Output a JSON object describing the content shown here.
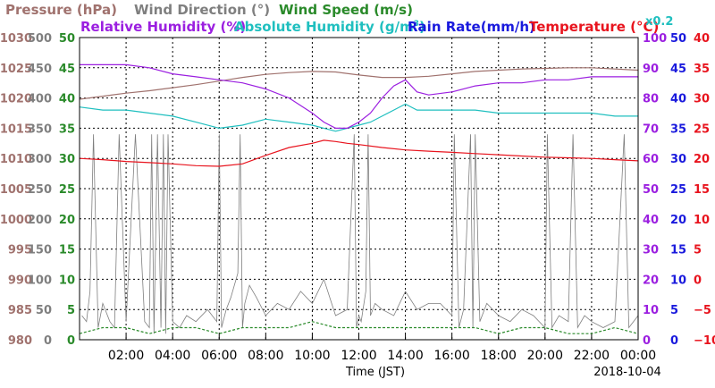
{
  "chart_data": {
    "type": "line",
    "date": "2018-10-04",
    "xlabel": "Time (JST)",
    "x_ticks": [
      "02:00",
      "04:00",
      "06:00",
      "08:00",
      "10:00",
      "12:00",
      "14:00",
      "16:00",
      "18:00",
      "20:00",
      "22:00",
      "00:00"
    ],
    "xlim": [
      0,
      24
    ],
    "grid": true,
    "titles": {
      "pressure": "Pressure (hPa)",
      "wind_direction": "Wind Direction (°)",
      "wind_speed": "Wind Speed (m/s)",
      "relative_humidity": "Relative Humidity (%)",
      "absolute_humidity": "Absolute Humidity (g/m",
      "absolute_humidity_sup": "3",
      "absolute_humidity_close": ")",
      "rain_rate": "Rain Rate(mm/h)",
      "temperature": "Temperature (°C)",
      "absolute_humidity_scale": "x0.2"
    },
    "axes": {
      "pressure": {
        "range": [
          980,
          1030
        ],
        "ticks": [
          "1030",
          "1025",
          "1020",
          "1015",
          "1010",
          "1005",
          "1000",
          "995",
          "990",
          "985",
          "980"
        ],
        "color": "#a0726e"
      },
      "wind_direction": {
        "range": [
          0,
          500
        ],
        "ticks": [
          "500",
          "450",
          "400",
          "350",
          "300",
          "250",
          "200",
          "150",
          "100",
          "50",
          "0"
        ],
        "color": "#7f7f7f"
      },
      "wind_speed": {
        "range": [
          0,
          50
        ],
        "ticks": [
          "50",
          "45",
          "40",
          "35",
          "30",
          "25",
          "20",
          "15",
          "10",
          "5",
          "0"
        ],
        "color": "#2a8a2a"
      },
      "relative_humidity": {
        "range": [
          0,
          100
        ],
        "ticks": [
          "100",
          "90",
          "80",
          "70",
          "60",
          "50",
          "40",
          "30",
          "20",
          "10",
          "0"
        ],
        "color": "#9b1fe0"
      },
      "rain_rate": {
        "range": [
          0,
          50
        ],
        "ticks": [
          "50",
          "45",
          "40",
          "35",
          "30",
          "25",
          "20",
          "15",
          "10",
          "5",
          "0"
        ],
        "color": "#1a1add"
      },
      "temperature": {
        "range": [
          -10,
          40
        ],
        "ticks": [
          "40",
          "35",
          "30",
          "25",
          "20",
          "15",
          "10",
          "5",
          "0",
          "−5",
          "−10"
        ],
        "color": "#e8141e"
      }
    },
    "series": [
      {
        "name": "Pressure (hPa)",
        "color": "#a0726e",
        "x": [
          0,
          1,
          2,
          3,
          4,
          5,
          6,
          7,
          8,
          9,
          10,
          11,
          12,
          13,
          14,
          15,
          16,
          17,
          18,
          19,
          20,
          21,
          22,
          23,
          24
        ],
        "y": [
          1019.8,
          1020.3,
          1020.8,
          1021.2,
          1021.7,
          1022.2,
          1022.8,
          1023.4,
          1023.9,
          1024.2,
          1024.4,
          1024.3,
          1023.8,
          1023.4,
          1023.4,
          1023.6,
          1024.0,
          1024.4,
          1024.6,
          1024.8,
          1024.9,
          1025.0,
          1025.0,
          1024.8,
          1024.6
        ]
      },
      {
        "name": "Relative Humidity (%)",
        "color": "#9b1fe0",
        "x": [
          0,
          1,
          2,
          3,
          4,
          5,
          6,
          7,
          8,
          9,
          10,
          10.5,
          11,
          11.5,
          12,
          12.5,
          13,
          13.5,
          14,
          14.5,
          15,
          16,
          17,
          18,
          19,
          20,
          21,
          22,
          23,
          24
        ],
        "y": [
          91,
          91,
          91,
          90,
          88,
          87,
          86,
          85,
          83,
          80,
          75,
          72,
          70,
          70,
          72,
          75,
          80,
          84,
          86,
          82,
          81,
          82,
          84,
          85,
          85,
          86,
          86,
          87,
          87,
          87
        ]
      },
      {
        "name": "Absolute Humidity (g/m3) x0.2",
        "color": "#1fbfbf",
        "x": [
          0,
          1,
          2,
          3,
          4,
          5,
          6,
          7,
          8,
          9,
          10,
          10.5,
          11,
          11.5,
          12,
          12.5,
          13,
          13.5,
          14,
          14.5,
          15,
          16,
          17,
          18,
          19,
          20,
          21,
          22,
          23,
          24
        ],
        "y": [
          77,
          76,
          76,
          75,
          74,
          72,
          70,
          71,
          73,
          72,
          71,
          70,
          69,
          70,
          71,
          72,
          74,
          76,
          78,
          76,
          76,
          76,
          76,
          75,
          75,
          75,
          75,
          75,
          74,
          74
        ]
      },
      {
        "name": "Temperature (°C)",
        "color": "#e8141e",
        "x": [
          0,
          1,
          2,
          3,
          4,
          5,
          6,
          7,
          8,
          9,
          10,
          10.5,
          11,
          11.5,
          12,
          13,
          14,
          15,
          16,
          17,
          18,
          19,
          20,
          21,
          22,
          23,
          24
        ],
        "y": [
          20.0,
          19.8,
          19.5,
          19.3,
          19.1,
          18.8,
          18.7,
          19.1,
          20.5,
          21.8,
          22.5,
          23.0,
          22.8,
          22.5,
          22.3,
          21.8,
          21.4,
          21.2,
          21.0,
          20.8,
          20.6,
          20.4,
          20.2,
          20.1,
          20.0,
          19.8,
          19.6
        ]
      },
      {
        "name": "Wind Direction (°)",
        "color": "#7f7f7f",
        "x": [
          0.1,
          0.3,
          0.45,
          0.6,
          0.8,
          1.0,
          1.3,
          1.5,
          1.7,
          2.0,
          2.4,
          2.8,
          3.0,
          3.1,
          3.2,
          3.35,
          3.5,
          3.6,
          3.7,
          3.8,
          4.0,
          4.3,
          4.6,
          5.0,
          5.5,
          5.9,
          6.0,
          6.1,
          6.3,
          6.5,
          6.8,
          6.9,
          7.0,
          7.1,
          7.3,
          7.6,
          8.0,
          8.5,
          9.0,
          9.5,
          10.0,
          10.5,
          11.0,
          11.5,
          11.8,
          11.9,
          12.0,
          12.1,
          12.3,
          12.4,
          12.5,
          12.7,
          13.0,
          13.5,
          14.0,
          14.5,
          15.0,
          15.5,
          16.0,
          16.1,
          16.3,
          16.5,
          16.8,
          16.9,
          17.0,
          17.2,
          17.5,
          18.0,
          18.5,
          19.0,
          19.5,
          20.0,
          20.1,
          20.3,
          20.6,
          21.0,
          21.2,
          21.4,
          21.7,
          22.0,
          22.5,
          23.0,
          23.4,
          23.6,
          23.8,
          24.0
        ],
        "y": [
          40,
          30,
          80,
          340,
          20,
          60,
          30,
          20,
          340,
          30,
          340,
          30,
          20,
          340,
          10,
          340,
          20,
          340,
          10,
          340,
          30,
          20,
          40,
          30,
          50,
          30,
          340,
          20,
          50,
          70,
          110,
          340,
          20,
          60,
          90,
          70,
          40,
          60,
          50,
          80,
          60,
          100,
          40,
          50,
          340,
          20,
          40,
          30,
          80,
          340,
          40,
          60,
          50,
          40,
          80,
          50,
          60,
          60,
          40,
          340,
          20,
          50,
          340,
          20,
          340,
          30,
          60,
          40,
          30,
          50,
          40,
          20,
          340,
          20,
          40,
          30,
          340,
          20,
          40,
          30,
          20,
          30,
          340,
          20,
          30,
          40
        ]
      },
      {
        "name": "Wind Speed (m/s)",
        "color": "#2a8a2a",
        "x": [
          0,
          1,
          2,
          3,
          4,
          5,
          6,
          7,
          8,
          9,
          10,
          11,
          12,
          13,
          14,
          15,
          16,
          17,
          18,
          19,
          20,
          21,
          22,
          23,
          24
        ],
        "y": [
          1,
          2,
          2,
          1,
          2,
          2,
          1,
          2,
          2,
          2,
          3,
          2,
          2,
          2,
          2,
          2,
          2,
          2,
          1,
          2,
          2,
          1,
          1,
          2,
          1
        ]
      }
    ]
  }
}
